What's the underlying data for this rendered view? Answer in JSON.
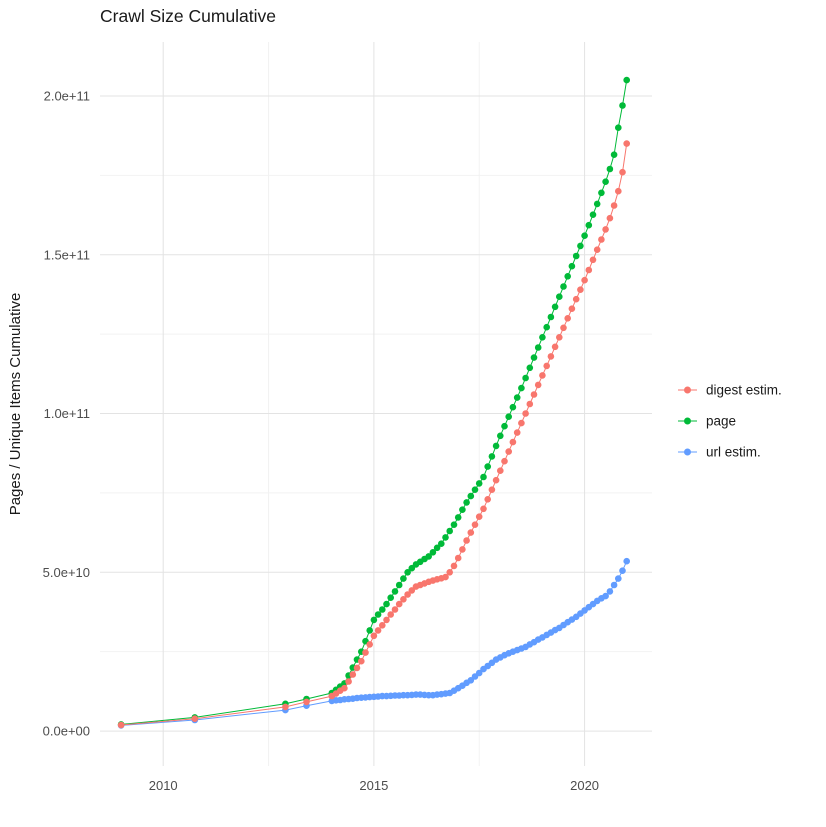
{
  "page": {
    "background": "#FFFFFF"
  },
  "chart_data": {
    "type": "line",
    "subtype": "scatter-line",
    "title": "Crawl Size Cumulative",
    "xlabel": "",
    "ylabel": "Pages / Unique Items Cumulative",
    "legend_position": "right",
    "grid": true,
    "xlim": [
      2008.5,
      2021.6
    ],
    "ylim": [
      -11,
      217
    ],
    "y_unit_multiplier": 1000000000.0,
    "x_ticks": [
      {
        "value": 2010,
        "label": "2010"
      },
      {
        "value": 2015,
        "label": "2015"
      },
      {
        "value": 2020,
        "label": "2020"
      }
    ],
    "x_minor": [
      2012.5,
      2017.5
    ],
    "y_ticks": [
      {
        "value": 0,
        "label": "0.0e+00"
      },
      {
        "value": 50,
        "label": "5.0e+10"
      },
      {
        "value": 100,
        "label": "1.0e+11"
      },
      {
        "value": 150,
        "label": "1.5e+11"
      },
      {
        "value": 200,
        "label": "2.0e+11"
      }
    ],
    "y_minor": [
      25,
      75,
      125,
      175
    ],
    "colors": {
      "grid_major": "#E3E3E3",
      "grid_minor": "#F2F2F2",
      "tick_text": "#4D4D4D",
      "title_text": "#1A1A1A",
      "digest": "#F8766D",
      "page": "#00BA38",
      "url": "#619CFF"
    },
    "draw_order": [
      2,
      1,
      0
    ],
    "series": [
      {
        "name": "digest estim.",
        "color": "#F8766D",
        "points": [
          [
            2009,
            1.9
          ],
          [
            2010.75,
            3.9
          ],
          [
            2012.9,
            7.6
          ],
          [
            2013.4,
            9.2
          ],
          [
            2014,
            11
          ],
          [
            2014.1,
            11.8
          ],
          [
            2014.2,
            12.7
          ],
          [
            2014.3,
            13.5
          ],
          [
            2014.4,
            15.6
          ],
          [
            2014.5,
            17.8
          ],
          [
            2014.6,
            19.9
          ],
          [
            2014.7,
            22
          ],
          [
            2014.8,
            24.7
          ],
          [
            2014.9,
            27.3
          ],
          [
            2015,
            30
          ],
          [
            2015.1,
            31.7
          ],
          [
            2015.2,
            33.3
          ],
          [
            2015.3,
            35
          ],
          [
            2015.4,
            36.7
          ],
          [
            2015.5,
            38.3
          ],
          [
            2015.6,
            40
          ],
          [
            2015.7,
            41.5
          ],
          [
            2015.8,
            43
          ],
          [
            2015.9,
            44.3
          ],
          [
            2016,
            45.5
          ],
          [
            2016.1,
            46
          ],
          [
            2016.2,
            46.5
          ],
          [
            2016.3,
            47
          ],
          [
            2016.4,
            47.4
          ],
          [
            2016.5,
            47.8
          ],
          [
            2016.6,
            48.1
          ],
          [
            2016.7,
            48.5
          ],
          [
            2016.8,
            50
          ],
          [
            2016.9,
            52
          ],
          [
            2017,
            54.5
          ],
          [
            2017.1,
            57.2
          ],
          [
            2017.2,
            60
          ],
          [
            2017.3,
            62.5
          ],
          [
            2017.4,
            65
          ],
          [
            2017.5,
            67.5
          ],
          [
            2017.6,
            70
          ],
          [
            2017.7,
            73
          ],
          [
            2017.8,
            76
          ],
          [
            2017.9,
            79
          ],
          [
            2018,
            82
          ],
          [
            2018.1,
            85
          ],
          [
            2018.2,
            88
          ],
          [
            2018.3,
            91
          ],
          [
            2018.4,
            94
          ],
          [
            2018.5,
            97
          ],
          [
            2018.6,
            100
          ],
          [
            2018.7,
            103
          ],
          [
            2018.8,
            106
          ],
          [
            2018.9,
            109
          ],
          [
            2019,
            112
          ],
          [
            2019.1,
            115
          ],
          [
            2019.2,
            118
          ],
          [
            2019.3,
            121
          ],
          [
            2019.4,
            124
          ],
          [
            2019.5,
            127
          ],
          [
            2019.6,
            130
          ],
          [
            2019.7,
            133
          ],
          [
            2019.8,
            136
          ],
          [
            2019.9,
            139
          ],
          [
            2020,
            142
          ],
          [
            2020.1,
            145.2
          ],
          [
            2020.2,
            148.4
          ],
          [
            2020.3,
            151.6
          ],
          [
            2020.4,
            154.8
          ],
          [
            2020.5,
            158
          ],
          [
            2020.6,
            161.5
          ],
          [
            2020.7,
            165.5
          ],
          [
            2020.8,
            170
          ],
          [
            2020.9,
            176
          ],
          [
            2021,
            185
          ]
        ]
      },
      {
        "name": "page",
        "color": "#00BA38",
        "points": [
          [
            2009,
            2.1
          ],
          [
            2010.75,
            4.3
          ],
          [
            2012.9,
            8.6
          ],
          [
            2013.4,
            10.1
          ],
          [
            2014,
            12
          ],
          [
            2014.1,
            13
          ],
          [
            2014.2,
            14
          ],
          [
            2014.3,
            15
          ],
          [
            2014.4,
            17.5
          ],
          [
            2014.5,
            20
          ],
          [
            2014.6,
            22.5
          ],
          [
            2014.7,
            25
          ],
          [
            2014.8,
            28.3
          ],
          [
            2014.9,
            31.7
          ],
          [
            2015,
            35
          ],
          [
            2015.1,
            36.7
          ],
          [
            2015.2,
            38.3
          ],
          [
            2015.3,
            40
          ],
          [
            2015.4,
            42
          ],
          [
            2015.5,
            44
          ],
          [
            2015.6,
            46
          ],
          [
            2015.7,
            48
          ],
          [
            2015.8,
            50
          ],
          [
            2015.9,
            51.3
          ],
          [
            2016,
            52.5
          ],
          [
            2016.1,
            53.3
          ],
          [
            2016.2,
            54.2
          ],
          [
            2016.3,
            55
          ],
          [
            2016.4,
            56.3
          ],
          [
            2016.5,
            57.7
          ],
          [
            2016.6,
            59
          ],
          [
            2016.7,
            61
          ],
          [
            2016.8,
            63
          ],
          [
            2016.9,
            65
          ],
          [
            2017,
            67.3
          ],
          [
            2017.1,
            69.7
          ],
          [
            2017.2,
            72
          ],
          [
            2017.3,
            74
          ],
          [
            2017.4,
            76
          ],
          [
            2017.5,
            78
          ],
          [
            2017.6,
            80
          ],
          [
            2017.7,
            83.3
          ],
          [
            2017.8,
            86.5
          ],
          [
            2017.9,
            89.8
          ],
          [
            2018,
            93
          ],
          [
            2018.1,
            96
          ],
          [
            2018.2,
            99
          ],
          [
            2018.3,
            102
          ],
          [
            2018.4,
            105
          ],
          [
            2018.5,
            108
          ],
          [
            2018.6,
            111.2
          ],
          [
            2018.7,
            114.4
          ],
          [
            2018.8,
            117.6
          ],
          [
            2018.9,
            120.8
          ],
          [
            2019,
            124
          ],
          [
            2019.1,
            127.2
          ],
          [
            2019.2,
            130.4
          ],
          [
            2019.3,
            133.6
          ],
          [
            2019.4,
            136.8
          ],
          [
            2019.5,
            140
          ],
          [
            2019.6,
            143.2
          ],
          [
            2019.7,
            146.4
          ],
          [
            2019.8,
            149.6
          ],
          [
            2019.9,
            152.8
          ],
          [
            2020,
            156
          ],
          [
            2020.1,
            159.3
          ],
          [
            2020.2,
            162.6
          ],
          [
            2020.3,
            166
          ],
          [
            2020.4,
            169.5
          ],
          [
            2020.5,
            173
          ],
          [
            2020.6,
            177
          ],
          [
            2020.7,
            181.5
          ],
          [
            2020.8,
            190
          ],
          [
            2020.9,
            197
          ],
          [
            2021,
            205
          ]
        ]
      },
      {
        "name": "url estim.",
        "color": "#619CFF",
        "points": [
          [
            2009,
            1.8
          ],
          [
            2010.75,
            3.5
          ],
          [
            2012.9,
            6.6
          ],
          [
            2013.4,
            8
          ],
          [
            2014,
            9.5
          ],
          [
            2014.1,
            9.7
          ],
          [
            2014.2,
            9.8
          ],
          [
            2014.3,
            10
          ],
          [
            2014.4,
            10.1
          ],
          [
            2014.5,
            10.2
          ],
          [
            2014.6,
            10.4
          ],
          [
            2014.7,
            10.5
          ],
          [
            2014.8,
            10.6
          ],
          [
            2014.9,
            10.7
          ],
          [
            2015,
            10.8
          ],
          [
            2015.1,
            10.9
          ],
          [
            2015.2,
            11
          ],
          [
            2015.3,
            11
          ],
          [
            2015.4,
            11.1
          ],
          [
            2015.5,
            11.2
          ],
          [
            2015.6,
            11.2
          ],
          [
            2015.7,
            11.3
          ],
          [
            2015.8,
            11.3
          ],
          [
            2015.9,
            11.4
          ],
          [
            2016,
            11.5
          ],
          [
            2016.1,
            11.5
          ],
          [
            2016.2,
            11.4
          ],
          [
            2016.3,
            11.3
          ],
          [
            2016.4,
            11.3
          ],
          [
            2016.5,
            11.5
          ],
          [
            2016.6,
            11.6
          ],
          [
            2016.7,
            11.8
          ],
          [
            2016.8,
            12
          ],
          [
            2016.9,
            12.7
          ],
          [
            2017,
            13.5
          ],
          [
            2017.1,
            14.3
          ],
          [
            2017.2,
            15.2
          ],
          [
            2017.3,
            16
          ],
          [
            2017.4,
            17.2
          ],
          [
            2017.5,
            18.3
          ],
          [
            2017.6,
            19.5
          ],
          [
            2017.7,
            20.5
          ],
          [
            2017.8,
            21.5
          ],
          [
            2017.9,
            22.5
          ],
          [
            2018,
            23.2
          ],
          [
            2018.1,
            23.9
          ],
          [
            2018.2,
            24.5
          ],
          [
            2018.3,
            25
          ],
          [
            2018.4,
            25.5
          ],
          [
            2018.5,
            26
          ],
          [
            2018.6,
            26.5
          ],
          [
            2018.7,
            27.3
          ],
          [
            2018.8,
            28
          ],
          [
            2018.9,
            28.8
          ],
          [
            2019,
            29.5
          ],
          [
            2019.1,
            30.3
          ],
          [
            2019.2,
            31
          ],
          [
            2019.3,
            31.8
          ],
          [
            2019.4,
            32.5
          ],
          [
            2019.5,
            33.4
          ],
          [
            2019.6,
            34.3
          ],
          [
            2019.7,
            35.1
          ],
          [
            2019.8,
            36
          ],
          [
            2019.9,
            37
          ],
          [
            2020,
            38
          ],
          [
            2020.1,
            39
          ],
          [
            2020.2,
            40
          ],
          [
            2020.3,
            41
          ],
          [
            2020.4,
            41.8
          ],
          [
            2020.5,
            42.5
          ],
          [
            2020.6,
            44
          ],
          [
            2020.7,
            46
          ],
          [
            2020.8,
            48
          ],
          [
            2020.9,
            50.5
          ],
          [
            2021,
            53.5
          ]
        ]
      }
    ]
  }
}
